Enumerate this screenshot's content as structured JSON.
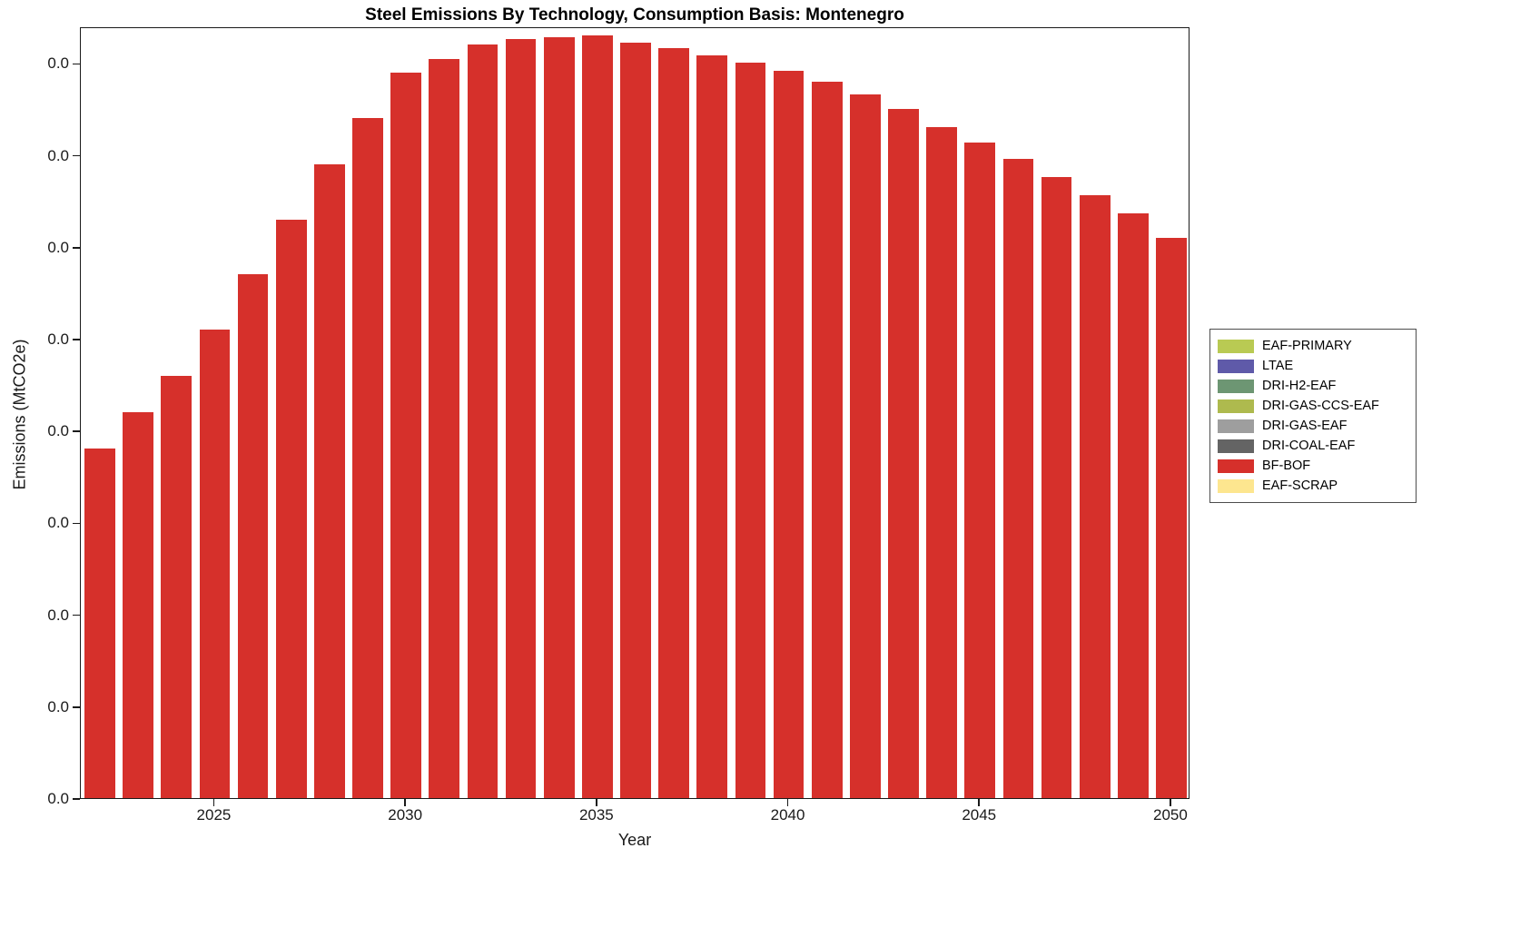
{
  "chart_data": {
    "type": "bar",
    "title": "Steel Emissions By Technology, Consumption Basis: Montenegro",
    "xlabel": "Year",
    "ylabel": "Emissions (MtCO2e)",
    "x": [
      2022,
      2023,
      2024,
      2025,
      2026,
      2027,
      2028,
      2029,
      2030,
      2031,
      2032,
      2033,
      2034,
      2035,
      2036,
      2037,
      2038,
      2039,
      2040,
      2041,
      2042,
      2043,
      2044,
      2045,
      2046,
      2047,
      2048,
      2049,
      2050
    ],
    "series": [
      {
        "name": "BF-BOF",
        "color": "#d6302b",
        "values": [
          0.019,
          0.021,
          0.023,
          0.0255,
          0.0285,
          0.0315,
          0.0345,
          0.037,
          0.0395,
          0.0402,
          0.041,
          0.0413,
          0.0414,
          0.0415,
          0.0411,
          0.0408,
          0.0404,
          0.04,
          0.0396,
          0.039,
          0.0383,
          0.0375,
          0.0365,
          0.0357,
          0.0348,
          0.0338,
          0.0328,
          0.0318,
          0.0305
        ]
      }
    ],
    "x_ticks": [
      2025,
      2030,
      2035,
      2040,
      2045,
      2050
    ],
    "ylim": [
      0,
      0.042
    ],
    "y_tick_step": 0.005,
    "y_tick_count": 9,
    "y_tick_label": "0.0",
    "grid": false,
    "legend_position": "right",
    "legend": [
      {
        "label": "EAF-PRIMARY",
        "color": "#b9ca53"
      },
      {
        "label": "LTAE",
        "color": "#5f5aa9"
      },
      {
        "label": "DRI-H2-EAF",
        "color": "#6d9673"
      },
      {
        "label": "DRI-GAS-CCS-EAF",
        "color": "#aeba4e"
      },
      {
        "label": "DRI-GAS-EAF",
        "color": "#9e9e9e"
      },
      {
        "label": "DRI-COAL-EAF",
        "color": "#646464"
      },
      {
        "label": "BF-BOF",
        "color": "#d6302b"
      },
      {
        "label": "EAF-SCRAP",
        "color": "#fde68f"
      }
    ]
  }
}
